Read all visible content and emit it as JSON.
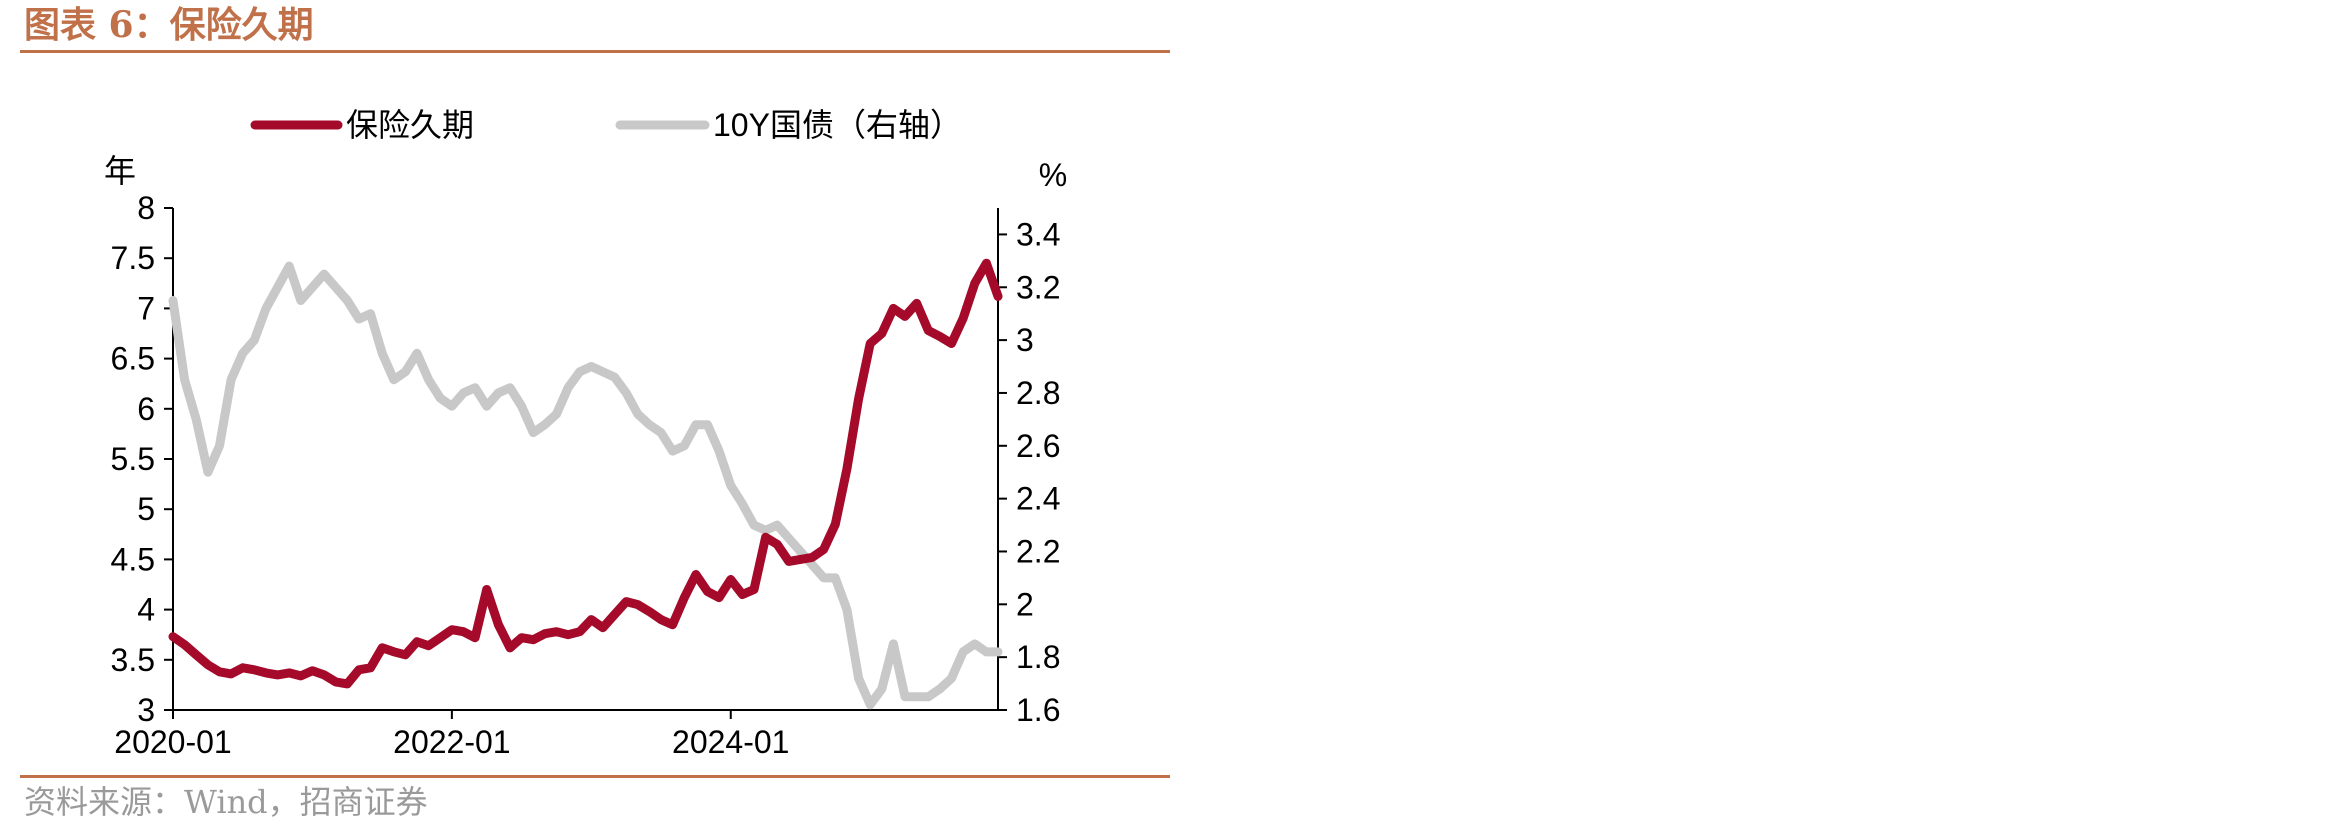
{
  "figure": {
    "title": "图表 6：保险久期",
    "source": "资料来源：Wind，招商证券"
  },
  "chart_data": {
    "type": "line",
    "title": "图表 6：保险久期",
    "left_axis": {
      "unit": "年",
      "ylim": [
        3,
        8
      ],
      "ticks": [
        "3",
        "3.5",
        "4",
        "4.5",
        "5",
        "5.5",
        "6",
        "6.5",
        "7",
        "7.5",
        "8"
      ]
    },
    "right_axis": {
      "unit": "%",
      "ylim": [
        1.6,
        3.5
      ],
      "ticks": [
        "1.6",
        "1.8",
        "2",
        "2.2",
        "2.4",
        "2.6",
        "2.8",
        "3",
        "3.2",
        "3.4"
      ]
    },
    "x_axis": {
      "xlim": [
        "2020-01",
        "2025-12"
      ],
      "ticks": [
        "2020-01",
        "2022-01",
        "2024-01"
      ]
    },
    "legend_position": "top",
    "grid": false,
    "colors": {
      "duration": "#a50a2a",
      "bond": "#c8c8c8",
      "accent": "#c0714a"
    },
    "series": [
      {
        "name": "保险久期",
        "axis": "left",
        "color": "#a50a2a",
        "points": [
          [
            "2020-01",
            3.73
          ],
          [
            "2020-02",
            3.65
          ],
          [
            "2020-03",
            3.55
          ],
          [
            "2020-04",
            3.45
          ],
          [
            "2020-05",
            3.38
          ],
          [
            "2020-06",
            3.36
          ],
          [
            "2020-07",
            3.42
          ],
          [
            "2020-08",
            3.4
          ],
          [
            "2020-09",
            3.37
          ],
          [
            "2020-10",
            3.35
          ],
          [
            "2020-11",
            3.37
          ],
          [
            "2020-12",
            3.34
          ],
          [
            "2021-01",
            3.39
          ],
          [
            "2021-02",
            3.35
          ],
          [
            "2021-03",
            3.28
          ],
          [
            "2021-04",
            3.26
          ],
          [
            "2021-05",
            3.4
          ],
          [
            "2021-06",
            3.42
          ],
          [
            "2021-07",
            3.62
          ],
          [
            "2021-08",
            3.58
          ],
          [
            "2021-09",
            3.55
          ],
          [
            "2021-10",
            3.68
          ],
          [
            "2021-11",
            3.64
          ],
          [
            "2021-12",
            3.72
          ],
          [
            "2022-01",
            3.8
          ],
          [
            "2022-02",
            3.78
          ],
          [
            "2022-03",
            3.72
          ],
          [
            "2022-04",
            4.2
          ],
          [
            "2022-05",
            3.85
          ],
          [
            "2022-06",
            3.62
          ],
          [
            "2022-07",
            3.72
          ],
          [
            "2022-08",
            3.7
          ],
          [
            "2022-09",
            3.76
          ],
          [
            "2022-10",
            3.78
          ],
          [
            "2022-11",
            3.75
          ],
          [
            "2022-12",
            3.78
          ],
          [
            "2023-01",
            3.9
          ],
          [
            "2023-02",
            3.82
          ],
          [
            "2023-03",
            3.95
          ],
          [
            "2023-04",
            4.08
          ],
          [
            "2023-05",
            4.05
          ],
          [
            "2023-06",
            3.98
          ],
          [
            "2023-07",
            3.9
          ],
          [
            "2023-08",
            3.85
          ],
          [
            "2023-09",
            4.12
          ],
          [
            "2023-10",
            4.35
          ],
          [
            "2023-11",
            4.18
          ],
          [
            "2023-12",
            4.12
          ],
          [
            "2024-01",
            4.3
          ],
          [
            "2024-02",
            4.15
          ],
          [
            "2024-03",
            4.2
          ],
          [
            "2024-04",
            4.72
          ],
          [
            "2024-05",
            4.65
          ],
          [
            "2024-06",
            4.48
          ],
          [
            "2024-07",
            4.5
          ],
          [
            "2024-08",
            4.52
          ],
          [
            "2024-09",
            4.6
          ],
          [
            "2024-10",
            4.85
          ],
          [
            "2024-11",
            5.4
          ],
          [
            "2024-12",
            6.1
          ],
          [
            "2025-01",
            6.65
          ],
          [
            "2025-02",
            6.75
          ],
          [
            "2025-03",
            7.0
          ],
          [
            "2025-04",
            6.92
          ],
          [
            "2025-05",
            7.05
          ],
          [
            "2025-06",
            6.78
          ],
          [
            "2025-07",
            6.72
          ],
          [
            "2025-08",
            6.65
          ],
          [
            "2025-09",
            6.9
          ],
          [
            "2025-10",
            7.25
          ],
          [
            "2025-11",
            7.45
          ],
          [
            "2025-12",
            7.12
          ]
        ]
      },
      {
        "name": "10Y国债（右轴）",
        "axis": "right",
        "color": "#c8c8c8",
        "points": [
          [
            "2020-01",
            3.15
          ],
          [
            "2020-02",
            2.85
          ],
          [
            "2020-03",
            2.7
          ],
          [
            "2020-04",
            2.5
          ],
          [
            "2020-05",
            2.6
          ],
          [
            "2020-06",
            2.85
          ],
          [
            "2020-07",
            2.95
          ],
          [
            "2020-08",
            3.0
          ],
          [
            "2020-09",
            3.12
          ],
          [
            "2020-10",
            3.2
          ],
          [
            "2020-11",
            3.28
          ],
          [
            "2020-12",
            3.15
          ],
          [
            "2021-01",
            3.2
          ],
          [
            "2021-02",
            3.25
          ],
          [
            "2021-03",
            3.2
          ],
          [
            "2021-04",
            3.15
          ],
          [
            "2021-05",
            3.08
          ],
          [
            "2021-06",
            3.1
          ],
          [
            "2021-07",
            2.95
          ],
          [
            "2021-08",
            2.85
          ],
          [
            "2021-09",
            2.88
          ],
          [
            "2021-10",
            2.95
          ],
          [
            "2021-11",
            2.85
          ],
          [
            "2021-12",
            2.78
          ],
          [
            "2022-01",
            2.75
          ],
          [
            "2022-02",
            2.8
          ],
          [
            "2022-03",
            2.82
          ],
          [
            "2022-04",
            2.75
          ],
          [
            "2022-05",
            2.8
          ],
          [
            "2022-06",
            2.82
          ],
          [
            "2022-07",
            2.75
          ],
          [
            "2022-08",
            2.65
          ],
          [
            "2022-09",
            2.68
          ],
          [
            "2022-10",
            2.72
          ],
          [
            "2022-11",
            2.82
          ],
          [
            "2022-12",
            2.88
          ],
          [
            "2023-01",
            2.9
          ],
          [
            "2023-02",
            2.88
          ],
          [
            "2023-03",
            2.86
          ],
          [
            "2023-04",
            2.8
          ],
          [
            "2023-05",
            2.72
          ],
          [
            "2023-06",
            2.68
          ],
          [
            "2023-07",
            2.65
          ],
          [
            "2023-08",
            2.58
          ],
          [
            "2023-09",
            2.6
          ],
          [
            "2023-10",
            2.68
          ],
          [
            "2023-11",
            2.68
          ],
          [
            "2023-12",
            2.58
          ],
          [
            "2024-01",
            2.45
          ],
          [
            "2024-02",
            2.38
          ],
          [
            "2024-03",
            2.3
          ],
          [
            "2024-04",
            2.28
          ],
          [
            "2024-05",
            2.3
          ],
          [
            "2024-06",
            2.25
          ],
          [
            "2024-07",
            2.2
          ],
          [
            "2024-08",
            2.15
          ],
          [
            "2024-09",
            2.1
          ],
          [
            "2024-10",
            2.1
          ],
          [
            "2024-11",
            1.98
          ],
          [
            "2024-12",
            1.72
          ],
          [
            "2025-01",
            1.62
          ],
          [
            "2025-02",
            1.68
          ],
          [
            "2025-03",
            1.85
          ],
          [
            "2025-04",
            1.65
          ],
          [
            "2025-05",
            1.65
          ],
          [
            "2025-06",
            1.65
          ],
          [
            "2025-07",
            1.68
          ],
          [
            "2025-08",
            1.72
          ],
          [
            "2025-09",
            1.82
          ],
          [
            "2025-10",
            1.85
          ],
          [
            "2025-11",
            1.82
          ],
          [
            "2025-12",
            1.82
          ]
        ]
      }
    ]
  }
}
